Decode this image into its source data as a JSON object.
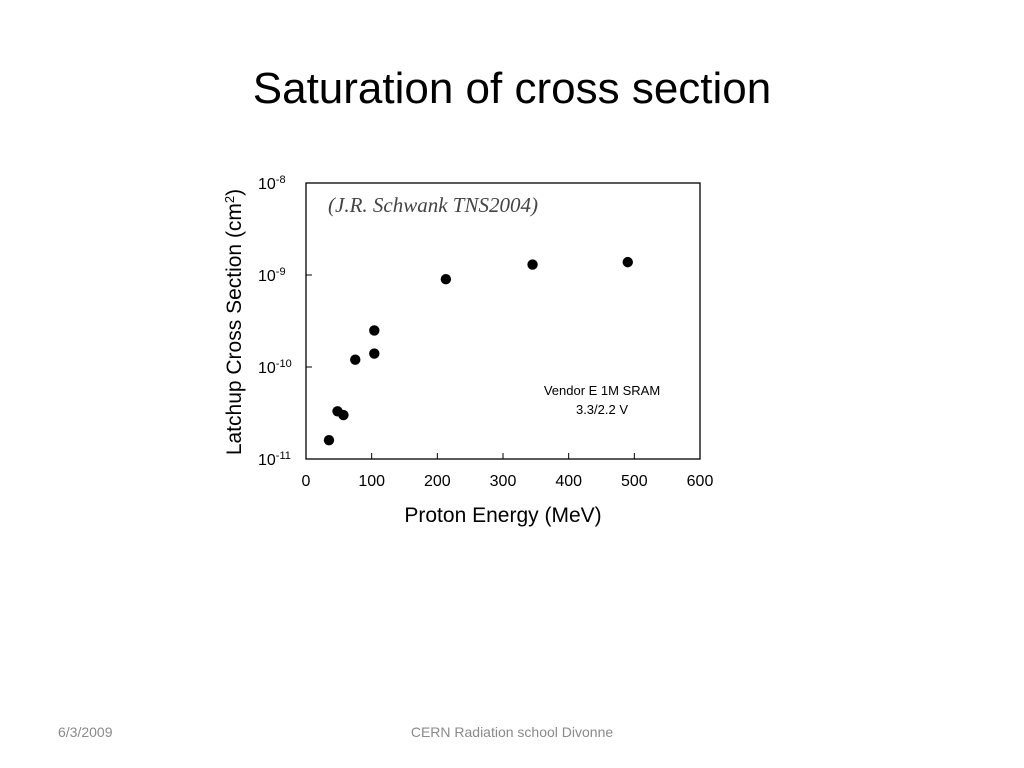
{
  "slide": {
    "title": "Saturation of cross section",
    "footer_date": "6/3/2009",
    "footer_center": "CERN Radiation school Divonne"
  },
  "chart_data": {
    "type": "scatter",
    "title": "",
    "annotation": "(J.R. Schwank TNS2004)",
    "xlabel": "Proton Energy (MeV)",
    "ylabel_main": "Latchup Cross Section (cm",
    "ylabel_sup": "2",
    "ylabel_close": ")",
    "xlim": [
      0,
      600
    ],
    "ylim": [
      1e-11,
      1e-08
    ],
    "yscale": "log",
    "grid": false,
    "x_ticks": [
      0,
      100,
      200,
      300,
      400,
      500,
      600
    ],
    "y_ticks": [
      {
        "value": 1e-11,
        "base": "10",
        "exp": "-11"
      },
      {
        "value": 1e-10,
        "base": "10",
        "exp": "-10"
      },
      {
        "value": 1e-09,
        "base": "10",
        "exp": "-9"
      },
      {
        "value": 1e-08,
        "base": "10",
        "exp": "-8"
      }
    ],
    "legend_text": [
      "Vendor E 1M SRAM",
      "3.3/2.2 V"
    ],
    "points": [
      {
        "x": 35,
        "y": 1.6e-11
      },
      {
        "x": 48,
        "y": 3.3e-11
      },
      {
        "x": 57,
        "y": 3e-11
      },
      {
        "x": 75,
        "y": 1.2e-10
      },
      {
        "x": 104,
        "y": 2.5e-10
      },
      {
        "x": 104,
        "y": 1.4e-10
      },
      {
        "x": 213,
        "y": 9e-10
      },
      {
        "x": 345,
        "y": 1.3e-09
      },
      {
        "x": 490,
        "y": 1.38e-09
      }
    ]
  }
}
